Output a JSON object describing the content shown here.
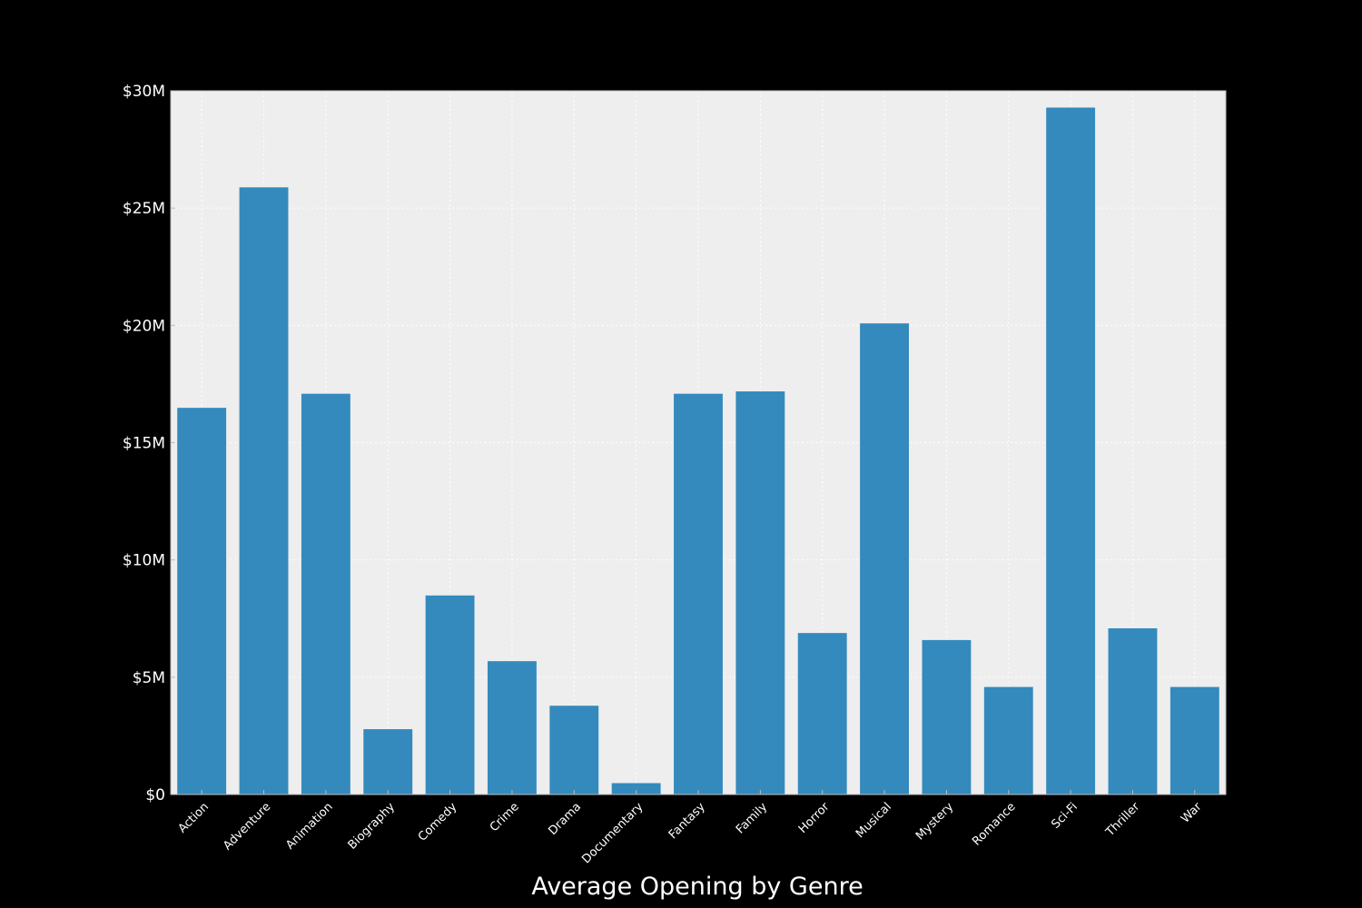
{
  "chart_data": {
    "type": "bar",
    "title": "",
    "xlabel": "Average Opening by Genre",
    "ylabel": "",
    "categories": [
      "Action",
      "Adventure",
      "Animation",
      "Biography",
      "Comedy",
      "Crime",
      "Drama",
      "Documentary",
      "Fantasy",
      "Family",
      "Horror",
      "Musical",
      "Mystery",
      "Romance",
      "Sci-Fi",
      "Thriller",
      "War"
    ],
    "values": [
      16.5,
      25.9,
      17.1,
      2.8,
      8.5,
      5.7,
      3.8,
      0.5,
      17.1,
      17.2,
      6.9,
      20.1,
      6.6,
      4.6,
      29.3,
      7.1,
      4.6
    ],
    "value_unit": "millions USD",
    "ylim": [
      0,
      30
    ],
    "yticks": [
      {
        "value": 0,
        "label": "$0"
      },
      {
        "value": 5,
        "label": "$5M"
      },
      {
        "value": 10,
        "label": "$10M"
      },
      {
        "value": 15,
        "label": "$15M"
      },
      {
        "value": 20,
        "label": "$20M"
      },
      {
        "value": 25,
        "label": "$25M"
      },
      {
        "value": 30,
        "label": "$30M"
      }
    ],
    "grid": true,
    "legend": "none",
    "colors": {
      "background": "#000000",
      "plot_background": "#eeeeee",
      "bar": "#348abd",
      "text": "#ffffff",
      "grid": "#ffffff",
      "axis_border": "#bcbcbc"
    }
  }
}
